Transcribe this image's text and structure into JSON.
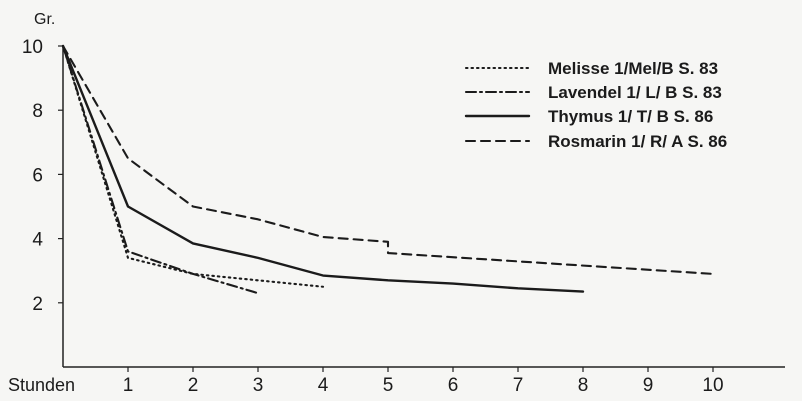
{
  "chart_data": {
    "type": "line",
    "ylabel": "Gr.",
    "xlabel": "Stunden",
    "xlim": [
      0,
      11
    ],
    "ylim": [
      0,
      10
    ],
    "x_ticks": [
      1,
      2,
      3,
      4,
      5,
      6,
      7,
      8,
      9,
      10
    ],
    "y_ticks": [
      2,
      4,
      6,
      8,
      10
    ],
    "legend_position": "top-right",
    "series": [
      {
        "name": "Melisse 1/Mel/B S. 83",
        "style": "dotted",
        "points": [
          [
            0,
            10
          ],
          [
            1,
            3.4
          ],
          [
            2,
            2.9
          ],
          [
            3,
            2.7
          ],
          [
            4,
            2.5
          ]
        ]
      },
      {
        "name": "Lavendel 1/ L/ B S. 83",
        "style": "dash-dot",
        "points": [
          [
            0,
            10
          ],
          [
            1,
            3.6
          ],
          [
            2,
            2.9
          ],
          [
            3,
            2.3
          ]
        ]
      },
      {
        "name": "Thymus  1/ T/ B S. 86",
        "style": "solid",
        "points": [
          [
            0,
            10
          ],
          [
            1,
            5.0
          ],
          [
            2,
            3.85
          ],
          [
            3,
            3.4
          ],
          [
            4,
            2.85
          ],
          [
            5,
            2.7
          ],
          [
            6,
            2.6
          ],
          [
            7,
            2.45
          ],
          [
            8,
            2.35
          ]
        ]
      },
      {
        "name": "Rosmarin 1/ R/ A S. 86",
        "style": "dashed",
        "points": [
          [
            0,
            10
          ],
          [
            1,
            6.5
          ],
          [
            2,
            5.0
          ],
          [
            3,
            4.6
          ],
          [
            4,
            4.05
          ],
          [
            5,
            3.9
          ],
          [
            5,
            3.55
          ],
          [
            10,
            2.9
          ]
        ]
      }
    ]
  }
}
